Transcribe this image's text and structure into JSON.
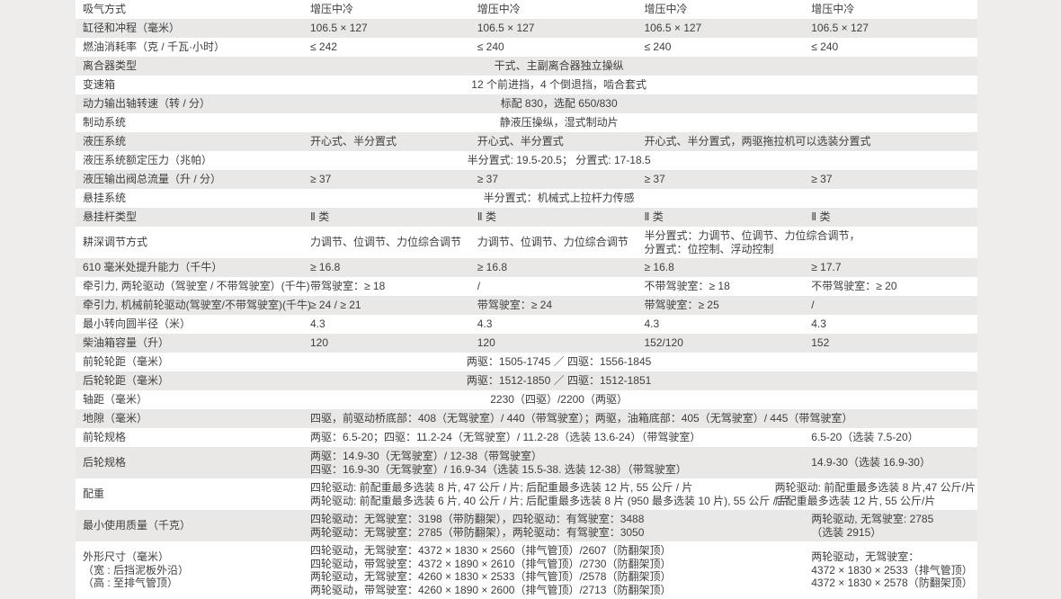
{
  "colors": {
    "page_background": "#eeedec",
    "stripe": "#e9e8e6",
    "row_white": "#ffffff",
    "text": "#3e3e3e"
  },
  "table": {
    "rows": [
      {
        "label": [
          "吸气方式"
        ],
        "cells": [
          {
            "s": 1,
            "t": [
              "增压中冷"
            ]
          },
          {
            "s": 1,
            "t": [
              "增压中冷"
            ]
          },
          {
            "s": 1,
            "t": [
              "增压中冷"
            ]
          },
          {
            "s": 1,
            "t": [
              "增压中冷"
            ]
          }
        ]
      },
      {
        "label": [
          "缸径和冲程（毫米）"
        ],
        "cells": [
          {
            "s": 1,
            "t": [
              "106.5 × 127"
            ]
          },
          {
            "s": 1,
            "t": [
              "106.5 × 127"
            ]
          },
          {
            "s": 1,
            "t": [
              "106.5 × 127"
            ]
          },
          {
            "s": 1,
            "t": [
              "106.5 × 127"
            ]
          }
        ]
      },
      {
        "label": [
          "燃油消耗率（克 / 千瓦·小时）"
        ],
        "cells": [
          {
            "s": 1,
            "t": [
              "≤ 242"
            ]
          },
          {
            "s": 1,
            "t": [
              "≤ 240"
            ]
          },
          {
            "s": 1,
            "t": [
              "≤ 240"
            ]
          },
          {
            "s": 1,
            "t": [
              "≤ 240"
            ]
          }
        ]
      },
      {
        "label": [
          "离合器类型"
        ],
        "cells": [
          {
            "s": 3,
            "a": "c",
            "t": [
              "干式、主副离合器独立操纵"
            ]
          },
          {
            "s": 1,
            "t": []
          }
        ]
      },
      {
        "label": [
          "变速箱"
        ],
        "cells": [
          {
            "s": 3,
            "a": "c",
            "t": [
              "12 个前进挡，4 个倒退挡，啮合套式"
            ]
          },
          {
            "s": 1,
            "t": []
          }
        ]
      },
      {
        "label": [
          "动力输出轴转速（转 / 分）"
        ],
        "cells": [
          {
            "s": 3,
            "a": "c",
            "t": [
              "标配 830，选配 650/830"
            ]
          },
          {
            "s": 1,
            "t": []
          }
        ]
      },
      {
        "label": [
          "制动系统"
        ],
        "cells": [
          {
            "s": 3,
            "a": "c",
            "t": [
              "静液压操纵，湿式制动片"
            ]
          },
          {
            "s": 1,
            "t": []
          }
        ]
      },
      {
        "label": [
          "液压系统"
        ],
        "cells": [
          {
            "s": 1,
            "t": [
              "开心式、半分置式"
            ]
          },
          {
            "s": 1,
            "t": [
              "开心式、半分置式"
            ]
          },
          {
            "s": 2,
            "t": [
              "开心式、半分置式，两驱拖拉机可以选装分置式"
            ]
          }
        ]
      },
      {
        "label": [
          "液压系统额定压力（兆帕）"
        ],
        "cells": [
          {
            "s": 3,
            "a": "c",
            "t": [
              "半分置式: 19.5-20.5；  分置式: 17-18.5"
            ]
          },
          {
            "s": 1,
            "t": []
          }
        ]
      },
      {
        "label": [
          "液压输出阀总流量（升 / 分）"
        ],
        "cells": [
          {
            "s": 1,
            "t": [
              "≥ 37"
            ]
          },
          {
            "s": 1,
            "t": [
              "≥ 37"
            ]
          },
          {
            "s": 1,
            "t": [
              "≥ 37"
            ]
          },
          {
            "s": 1,
            "t": [
              "≥ 37"
            ]
          }
        ]
      },
      {
        "label": [
          "悬挂系统"
        ],
        "cells": [
          {
            "s": 3,
            "a": "c",
            "t": [
              "半分置式：机械式上拉杆力传感"
            ]
          },
          {
            "s": 1,
            "t": []
          }
        ]
      },
      {
        "label": [
          "悬挂杆类型"
        ],
        "cells": [
          {
            "s": 1,
            "t": [
              "Ⅱ 类"
            ]
          },
          {
            "s": 1,
            "t": [
              "Ⅱ 类"
            ]
          },
          {
            "s": 1,
            "t": [
              "Ⅱ 类"
            ]
          },
          {
            "s": 1,
            "t": [
              "Ⅱ 类"
            ]
          }
        ]
      },
      {
        "label": [
          "耕深调节方式"
        ],
        "cells": [
          {
            "s": 1,
            "t": [
              "力调节、位调节、力位综合调节"
            ]
          },
          {
            "s": 1,
            "t": [
              "力调节、位调节、力位综合调节"
            ]
          },
          {
            "s": 2,
            "t": [
              "半分置式：力调节、位调节、力位综合调节，",
              "分置式：位控制、浮动控制"
            ]
          }
        ]
      },
      {
        "label": [
          "610 毫米处提升能力（千牛）"
        ],
        "cells": [
          {
            "s": 1,
            "t": [
              "≥ 16.8"
            ]
          },
          {
            "s": 1,
            "t": [
              "≥ 16.8"
            ]
          },
          {
            "s": 1,
            "t": [
              "≥ 16.8"
            ]
          },
          {
            "s": 1,
            "t": [
              "≥ 17.7"
            ]
          }
        ]
      },
      {
        "label": [
          "牵引力, 两轮驱动（驾驶室 / 不带驾驶室）(千牛)"
        ],
        "cells": [
          {
            "s": 1,
            "t": [
              "带驾驶室：≥ 18"
            ]
          },
          {
            "s": 1,
            "t": [
              "/"
            ]
          },
          {
            "s": 1,
            "t": [
              "不带驾驶室：≥ 18"
            ]
          },
          {
            "s": 1,
            "t": [
              "不带驾驶室：≥ 20"
            ]
          }
        ]
      },
      {
        "label": [
          "牵引力, 机械前轮驱动(驾驶室/不带驾驶室)(千牛)"
        ],
        "cells": [
          {
            "s": 1,
            "t": [
              "≥ 24 / ≥ 21"
            ]
          },
          {
            "s": 1,
            "t": [
              "带驾驶室：≥ 24"
            ]
          },
          {
            "s": 1,
            "t": [
              "带驾驶室：≥ 25"
            ]
          },
          {
            "s": 1,
            "t": [
              "/"
            ]
          }
        ]
      },
      {
        "label": [
          "最小转向圆半径（米）"
        ],
        "cells": [
          {
            "s": 1,
            "t": [
              "4.3"
            ]
          },
          {
            "s": 1,
            "t": [
              "4.3"
            ]
          },
          {
            "s": 1,
            "t": [
              "4.3"
            ]
          },
          {
            "s": 1,
            "t": [
              "4.3"
            ]
          }
        ]
      },
      {
        "label": [
          "柴油箱容量（升）"
        ],
        "cells": [
          {
            "s": 1,
            "t": [
              "120"
            ]
          },
          {
            "s": 1,
            "t": [
              "120"
            ]
          },
          {
            "s": 1,
            "t": [
              "152/120"
            ]
          },
          {
            "s": 1,
            "t": [
              "152"
            ]
          }
        ]
      },
      {
        "label": [
          "前轮轮距（毫米）"
        ],
        "cells": [
          {
            "s": 3,
            "a": "c",
            "t": [
              "两驱：1505-1745 ／ 四驱：1556-1845"
            ]
          },
          {
            "s": 1,
            "t": []
          }
        ]
      },
      {
        "label": [
          "后轮轮距（毫米）"
        ],
        "cells": [
          {
            "s": 3,
            "a": "c",
            "t": [
              "两驱：1512-1850 ／ 四驱：1512-1851"
            ]
          },
          {
            "s": 1,
            "t": []
          }
        ]
      },
      {
        "label": [
          "轴距（毫米）"
        ],
        "cells": [
          {
            "s": 3,
            "a": "c",
            "t": [
              "2230（四驱）/2200（两驱）"
            ]
          },
          {
            "s": 1,
            "t": []
          }
        ]
      },
      {
        "label": [
          "地隙（毫米）"
        ],
        "cells": [
          {
            "s": 4,
            "t": [
              "四驱，前驱动桥底部：408（无驾驶室）/ 440（带驾驶室）；两驱，油箱底部：405（无驾驶室）/ 445（带驾驶室）"
            ]
          }
        ]
      },
      {
        "label": [
          "前轮规格"
        ],
        "cells": [
          {
            "s": 3,
            "t": [
              "两驱：6.5-20；四驱：11.2-24（无驾驶室）/ 11.2-28（选装 13.6-24）（带驾驶室）"
            ]
          },
          {
            "s": 1,
            "t": [
              "6.5-20（选装 7.5-20）"
            ]
          }
        ]
      },
      {
        "label": [
          "后轮规格"
        ],
        "cells": [
          {
            "s": 3,
            "t": [
              "两驱：14.9-30（无驾驶室）/ 12-38（带驾驶室）",
              "四驱：16.9-30（无驾驶室）/ 16.9-34（选装 15.5-38. 选装 12-38）（带驾驶室）"
            ]
          },
          {
            "s": 1,
            "t": [
              "14.9-30（选装 16.9-30）"
            ]
          }
        ]
      },
      {
        "label": [
          "配重"
        ],
        "cells": [
          {
            "s": 3,
            "t": [
              "四轮驱动: 前配重最多选装 8 片, 47 公斤 / 片; 后配重最多选装 12 片, 55 公斤 / 片",
              "两轮驱动: 前配重最多选装 6 片, 40 公斤 / 片; 后配重最多选装 8 片 (950 最多选装 10 片), 55 公斤 / 片"
            ]
          },
          {
            "s": 1,
            "t": [
              "两轮驱动: 前配重最多选装 8 片,47 公斤/片",
              "后配重最多选装 12 片, 55 公斤/片"
            ]
          }
        ]
      },
      {
        "label": [
          "最小使用质量（千克）"
        ],
        "cells": [
          {
            "s": 3,
            "t": [
              "四轮驱动：无驾驶室：3198（带防翻架），四轮驱动：有驾驶室：3488",
              "两轮驱动：无驾驶室：2785（带防翻架），两轮驱动：有驾驶室：3050"
            ]
          },
          {
            "s": 1,
            "t": [
              "两轮驱动, 无驾驶室: 2785",
              "（选装 2915）"
            ]
          }
        ]
      },
      {
        "label": [
          "外形尺寸（毫米）",
          "（宽 : 后挡泥板外沿）",
          "（高 : 至排气管顶）"
        ],
        "cells": [
          {
            "s": 3,
            "t": [
              "四轮驱动，无驾驶室：4372 × 1830 × 2560（排气管顶）/2607（防翻架顶）",
              "四轮驱动，带驾驶室：4372 × 1890 × 2610（排气管顶）/2730（防翻架顶）",
              "两轮驱动，无驾驶室：4260 × 1830 × 2533（排气管顶）/2578（防翻架顶）",
              "两轮驱动，带驾驶室：4260 × 1890 × 2600（排气管顶）/2713（防翻架顶）"
            ]
          },
          {
            "s": 1,
            "t": [
              "两轮驱动，无驾驶室：",
              "4372 × 1830 × 2533（排气管顶）",
              "4372 × 1830 × 2578（防翻架顶）"
            ]
          }
        ]
      }
    ]
  }
}
